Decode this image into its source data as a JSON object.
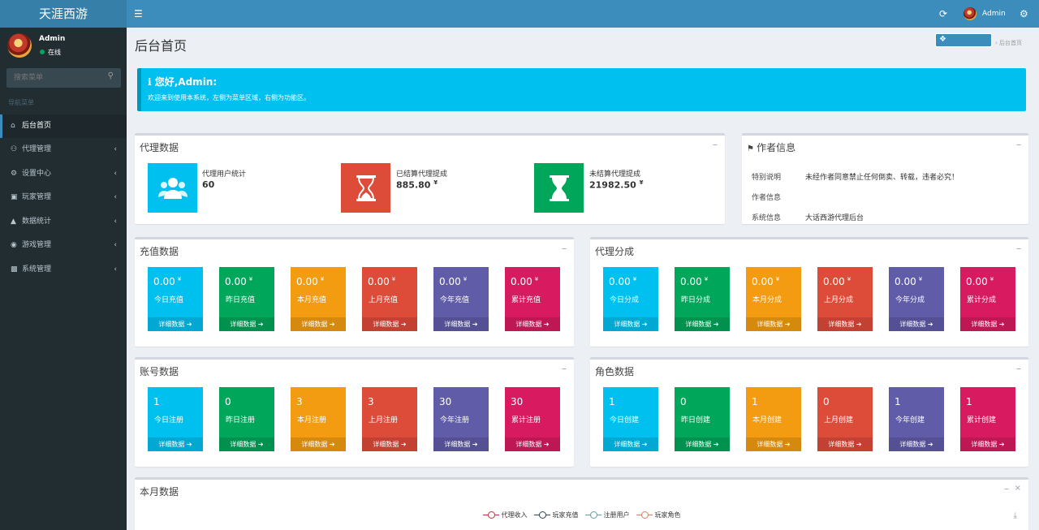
{
  "app": {
    "logo_text": "天涯西游",
    "user": "Admin",
    "status": "在线"
  },
  "sidebar": {
    "search_placeholder": "搜索菜单",
    "header": "导航菜单",
    "items": [
      {
        "label": "后台首页",
        "icon": "home-icon"
      },
      {
        "label": "代理管理",
        "icon": "users-icon"
      },
      {
        "label": "设置中心",
        "icon": "gears-icon"
      },
      {
        "label": "玩家管理",
        "icon": "id-card-icon"
      },
      {
        "label": "数据统计",
        "icon": "area-chart-icon"
      },
      {
        "label": "游戏管理",
        "icon": "gamepad-icon"
      },
      {
        "label": "系统管理",
        "icon": "desktop-icon"
      }
    ]
  },
  "page": {
    "title": "后台首页",
    "breadcrumb_home": "后台首页"
  },
  "callout": {
    "title": "您好,Admin:",
    "text": "欢迎来到使用本系统，左侧为菜单区域，右侧为功能区。"
  },
  "agent_box": {
    "title": "代理数据",
    "items": [
      {
        "label": "代理用户统计",
        "value": "60",
        "unit": "",
        "color": "#00c0ef",
        "icon": "users-icon"
      },
      {
        "label": "已结算代理提成",
        "value": "885.80",
        "unit": "¥",
        "color": "#dd4b39",
        "icon": "hourglass-icon"
      },
      {
        "label": "未结算代理提成",
        "value": "21982.50",
        "unit": "¥",
        "color": "#00a65a",
        "icon": "hourglass-icon"
      }
    ]
  },
  "author_box": {
    "title": "作者信息",
    "rows": [
      {
        "label": "特别说明",
        "value": "未经作者同意禁止任何倒卖、转载，违者必究！"
      },
      {
        "label": "作者信息",
        "value": ""
      },
      {
        "label": "系统信息",
        "value": "大话西游代理后台"
      }
    ]
  },
  "more_label": "详细数据",
  "recharge": {
    "title": "充值数据",
    "tiles": [
      {
        "value": "0.00",
        "unit": "¥",
        "label": "今日充值"
      },
      {
        "value": "0.00",
        "unit": "¥",
        "label": "昨日充值"
      },
      {
        "value": "0.00",
        "unit": "¥",
        "label": "本月充值"
      },
      {
        "value": "0.00",
        "unit": "¥",
        "label": "上月充值"
      },
      {
        "value": "0.00",
        "unit": "¥",
        "label": "今年充值"
      },
      {
        "value": "0.00",
        "unit": "¥",
        "label": "累计充值"
      }
    ]
  },
  "split": {
    "title": "代理分成",
    "tiles": [
      {
        "value": "0.00",
        "unit": "¥",
        "label": "今日分成"
      },
      {
        "value": "0.00",
        "unit": "¥",
        "label": "昨日分成"
      },
      {
        "value": "0.00",
        "unit": "¥",
        "label": "本月分成"
      },
      {
        "value": "0.00",
        "unit": "¥",
        "label": "上月分成"
      },
      {
        "value": "0.00",
        "unit": "¥",
        "label": "今年分成"
      },
      {
        "value": "0.00",
        "unit": "¥",
        "label": "累计分成"
      }
    ]
  },
  "accounts": {
    "title": "账号数据",
    "tiles": [
      {
        "value": "1",
        "unit": "",
        "label": "今日注册"
      },
      {
        "value": "0",
        "unit": "",
        "label": "昨日注册"
      },
      {
        "value": "3",
        "unit": "",
        "label": "本月注册"
      },
      {
        "value": "3",
        "unit": "",
        "label": "上月注册"
      },
      {
        "value": "30",
        "unit": "",
        "label": "今年注册"
      },
      {
        "value": "30",
        "unit": "",
        "label": "累计注册"
      }
    ]
  },
  "roles": {
    "title": "角色数据",
    "tiles": [
      {
        "value": "1",
        "unit": "",
        "label": "今日创建"
      },
      {
        "value": "0",
        "unit": "",
        "label": "昨日创建"
      },
      {
        "value": "1",
        "unit": "",
        "label": "本月创建"
      },
      {
        "value": "0",
        "unit": "",
        "label": "上月创建"
      },
      {
        "value": "1",
        "unit": "",
        "label": "今年创建"
      },
      {
        "value": "1",
        "unit": "",
        "label": "累计创建"
      }
    ]
  },
  "tile_colors": [
    "#00c0ef",
    "#00a65a",
    "#f39c12",
    "#dd4b39",
    "#605ca8",
    "#d81b60"
  ],
  "monthly": {
    "title": "本月数据",
    "legend": [
      {
        "name": "代理收入",
        "color": "#c23531"
      },
      {
        "name": "玩家充值",
        "color": "#2f4554"
      },
      {
        "name": "注册用户",
        "color": "#61a0a8"
      },
      {
        "name": "玩家角色",
        "color": "#d48265"
      }
    ]
  }
}
